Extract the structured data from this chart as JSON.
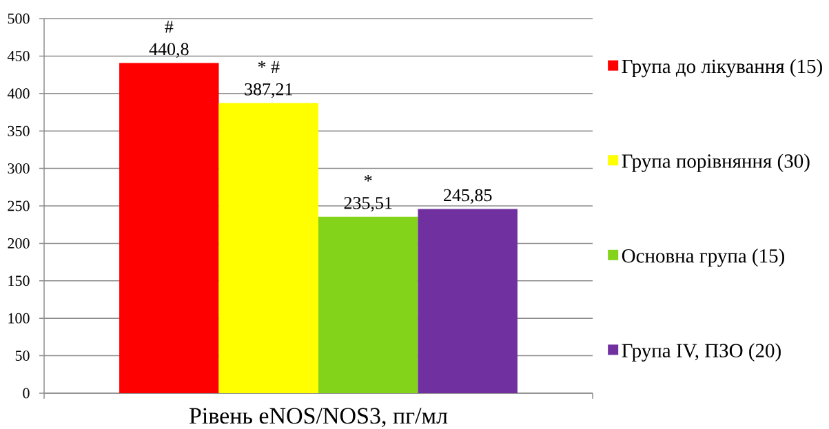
{
  "chart_data": {
    "type": "bar",
    "categories": [
      "Рівень eNOS/NOS3, пг/мл"
    ],
    "series": [
      {
        "name": "Група до лікування (15)",
        "color": "#ff0000",
        "values": [
          440.8
        ],
        "value_labels": [
          "440,8"
        ]
      },
      {
        "name": "Група порівняння (30)",
        "color": "#ffff00",
        "values": [
          387.21
        ],
        "value_labels": [
          "387,21"
        ]
      },
      {
        "name": "Основна група (15)",
        "color": "#83d31b",
        "values": [
          235.51
        ],
        "value_labels": [
          "235,51"
        ]
      },
      {
        "name": "Група IV, ПЗО (20)",
        "color": "#7030a0",
        "values": [
          245.85
        ],
        "value_labels": [
          "245,85"
        ]
      }
    ],
    "ylim": [
      0,
      500
    ],
    "yticks": [
      0,
      50,
      100,
      150,
      200,
      250,
      300,
      350,
      400,
      450,
      500
    ],
    "grid": "y",
    "legend": "right",
    "annotations": [
      "#",
      "* #",
      "*"
    ]
  }
}
